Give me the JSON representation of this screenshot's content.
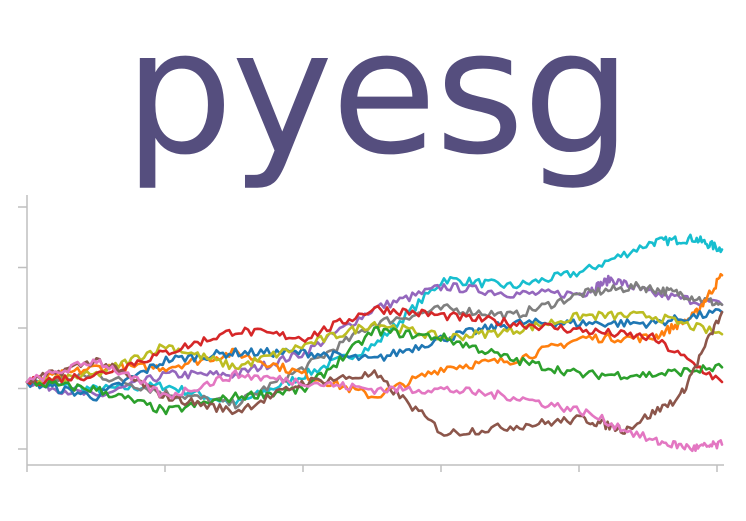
{
  "logo": {
    "text": "pyesg",
    "color": "#554e7e"
  },
  "chart_data": {
    "type": "line",
    "title": "",
    "xlabel": "",
    "ylabel": "",
    "grid": false,
    "legend": "none",
    "x_ticks": 6,
    "y_ticks": 5,
    "xlim": [
      0,
      500
    ],
    "ylim": [
      -1.1,
      2.5
    ],
    "series": [
      {
        "color": "#17becf",
        "values": [
          [
            0,
            0
          ],
          [
            50,
            -0.1
          ],
          [
            100,
            -0.05
          ],
          [
            150,
            -0.3
          ],
          [
            200,
            0.1
          ],
          [
            250,
            0.5
          ],
          [
            300,
            1.4
          ],
          [
            350,
            1.3
          ],
          [
            400,
            1.5
          ],
          [
            450,
            1.9
          ],
          [
            480,
            1.95
          ],
          [
            500,
            1.8
          ]
        ]
      },
      {
        "color": "#9467bd",
        "values": [
          [
            0,
            0
          ],
          [
            50,
            -0.2
          ],
          [
            100,
            0.1
          ],
          [
            150,
            0.1
          ],
          [
            200,
            0.4
          ],
          [
            250,
            1.0
          ],
          [
            300,
            1.3
          ],
          [
            350,
            1.2
          ],
          [
            400,
            1.2
          ],
          [
            420,
            1.4
          ],
          [
            450,
            1.2
          ],
          [
            500,
            1.05
          ]
        ]
      },
      {
        "color": "#7f7f7f",
        "values": [
          [
            0,
            0
          ],
          [
            50,
            0.1
          ],
          [
            100,
            -0.15
          ],
          [
            150,
            -0.3
          ],
          [
            200,
            0.2
          ],
          [
            250,
            0.8
          ],
          [
            300,
            1.0
          ],
          [
            350,
            0.9
          ],
          [
            400,
            1.2
          ],
          [
            440,
            1.3
          ],
          [
            470,
            1.2
          ],
          [
            500,
            1.05
          ]
        ]
      },
      {
        "color": "#ff7f0e",
        "values": [
          [
            0,
            0
          ],
          [
            50,
            0.2
          ],
          [
            100,
            0.2
          ],
          [
            150,
            0.4
          ],
          [
            200,
            0.1
          ],
          [
            250,
            -0.2
          ],
          [
            300,
            0.2
          ],
          [
            350,
            0.3
          ],
          [
            400,
            0.6
          ],
          [
            450,
            0.6
          ],
          [
            480,
            0.9
          ],
          [
            500,
            1.45
          ]
        ]
      },
      {
        "color": "#1f77b4",
        "values": [
          [
            0,
            0
          ],
          [
            50,
            -0.2
          ],
          [
            100,
            0.3
          ],
          [
            150,
            0.4
          ],
          [
            200,
            0.4
          ],
          [
            250,
            0.3
          ],
          [
            300,
            0.6
          ],
          [
            350,
            0.8
          ],
          [
            400,
            0.8
          ],
          [
            450,
            0.8
          ],
          [
            500,
            0.95
          ]
        ]
      },
      {
        "color": "#bcbd22",
        "values": [
          [
            0,
            0
          ],
          [
            50,
            0.1
          ],
          [
            100,
            0.5
          ],
          [
            150,
            0.2
          ],
          [
            200,
            0.5
          ],
          [
            250,
            0.8
          ],
          [
            300,
            0.6
          ],
          [
            350,
            0.7
          ],
          [
            400,
            0.9
          ],
          [
            450,
            0.9
          ],
          [
            500,
            0.65
          ]
        ]
      },
      {
        "color": "#d62728",
        "values": [
          [
            0,
            0
          ],
          [
            50,
            0.1
          ],
          [
            100,
            0.4
          ],
          [
            150,
            0.7
          ],
          [
            200,
            0.6
          ],
          [
            250,
            1.0
          ],
          [
            300,
            0.9
          ],
          [
            350,
            0.8
          ],
          [
            400,
            0.7
          ],
          [
            450,
            0.6
          ],
          [
            500,
            0.0
          ]
        ]
      },
      {
        "color": "#2ca02c",
        "values": [
          [
            0,
            0
          ],
          [
            50,
            -0.1
          ],
          [
            100,
            -0.4
          ],
          [
            150,
            -0.2
          ],
          [
            200,
            -0.1
          ],
          [
            250,
            0.7
          ],
          [
            300,
            0.6
          ],
          [
            350,
            0.3
          ],
          [
            400,
            0.1
          ],
          [
            450,
            0.1
          ],
          [
            500,
            0.2
          ]
        ]
      },
      {
        "color": "#8c564b",
        "values": [
          [
            0,
            0
          ],
          [
            50,
            0.3
          ],
          [
            100,
            -0.2
          ],
          [
            150,
            -0.4
          ],
          [
            200,
            0.0
          ],
          [
            250,
            0.1
          ],
          [
            300,
            -0.7
          ],
          [
            350,
            -0.6
          ],
          [
            400,
            -0.5
          ],
          [
            430,
            -0.65
          ],
          [
            470,
            -0.2
          ],
          [
            500,
            0.95
          ]
        ]
      },
      {
        "color": "#e377c2",
        "values": [
          [
            0,
            0
          ],
          [
            50,
            0.3
          ],
          [
            100,
            -0.2
          ],
          [
            150,
            0.1
          ],
          [
            200,
            0.0
          ],
          [
            250,
            -0.1
          ],
          [
            300,
            -0.1
          ],
          [
            350,
            -0.2
          ],
          [
            400,
            -0.4
          ],
          [
            450,
            -0.8
          ],
          [
            480,
            -0.9
          ],
          [
            500,
            -0.85
          ]
        ]
      }
    ]
  }
}
